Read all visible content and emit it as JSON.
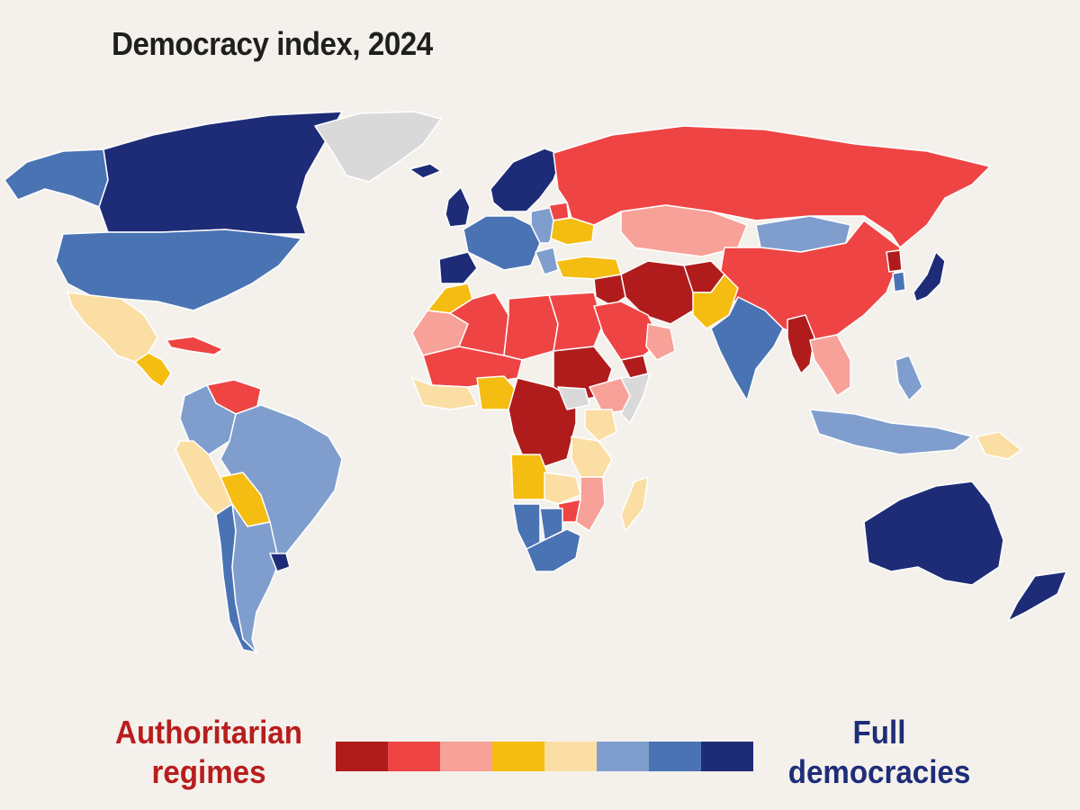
{
  "title": "Democracy index, 2024",
  "legend": {
    "low_label_line1": "Authoritarian",
    "low_label_line2": "regimes",
    "high_label_line1": "Full",
    "high_label_line2": "democracies",
    "scale_colors": [
      "#b01c1c",
      "#ef4444",
      "#f7a199",
      "#f5bd12",
      "#fbdea4",
      "#7f9ece",
      "#4a73b4",
      "#1e2c77"
    ]
  },
  "colors": {
    "background": "#f4f1ec",
    "no_data": "#d9d9d9",
    "title": "#1f1f1f",
    "authoritarian_text": "#b81d1d",
    "democracy_text": "#1e2d78"
  },
  "regions": [
    {
      "name": "alaska",
      "level": 6
    },
    {
      "name": "canada",
      "level": 7
    },
    {
      "name": "greenland",
      "level": -1
    },
    {
      "name": "united-states",
      "level": 6
    },
    {
      "name": "mexico",
      "level": 4
    },
    {
      "name": "central-america",
      "level": 3
    },
    {
      "name": "cuba",
      "level": 1
    },
    {
      "name": "venezuela",
      "level": 1
    },
    {
      "name": "colombia",
      "level": 5
    },
    {
      "name": "peru",
      "level": 4
    },
    {
      "name": "brazil",
      "level": 5
    },
    {
      "name": "bolivia",
      "level": 3
    },
    {
      "name": "argentina",
      "level": 5
    },
    {
      "name": "chile",
      "level": 6
    },
    {
      "name": "uruguay",
      "level": 7
    },
    {
      "name": "iceland",
      "level": 7
    },
    {
      "name": "united-kingdom",
      "level": 7
    },
    {
      "name": "scandinavia",
      "level": 7
    },
    {
      "name": "western-europe",
      "level": 6
    },
    {
      "name": "iberia",
      "level": 7
    },
    {
      "name": "eastern-europe",
      "level": 5
    },
    {
      "name": "ukraine",
      "level": 3
    },
    {
      "name": "belarus",
      "level": 1
    },
    {
      "name": "turkey",
      "level": 3
    },
    {
      "name": "russia",
      "level": 1
    },
    {
      "name": "kazakhstan",
      "level": 2
    },
    {
      "name": "mongolia",
      "level": 5
    },
    {
      "name": "china",
      "level": 1
    },
    {
      "name": "iran",
      "level": 0
    },
    {
      "name": "afghanistan",
      "level": 0
    },
    {
      "name": "pakistan",
      "level": 3
    },
    {
      "name": "india",
      "level": 6
    },
    {
      "name": "myanmar",
      "level": 0
    },
    {
      "name": "southeast-asia",
      "level": 2
    },
    {
      "name": "north-korea",
      "level": 0
    },
    {
      "name": "south-korea",
      "level": 6
    },
    {
      "name": "japan",
      "level": 7
    },
    {
      "name": "indonesia",
      "level": 5
    },
    {
      "name": "philippines",
      "level": 5
    },
    {
      "name": "papua-new-guinea",
      "level": 4
    },
    {
      "name": "australia",
      "level": 7
    },
    {
      "name": "new-zealand",
      "level": 7
    },
    {
      "name": "morocco",
      "level": 3
    },
    {
      "name": "west-sahara",
      "level": 2
    },
    {
      "name": "algeria",
      "level": 1
    },
    {
      "name": "libya",
      "level": 1
    },
    {
      "name": "egypt",
      "level": 1
    },
    {
      "name": "sahel",
      "level": 1
    },
    {
      "name": "sudan",
      "level": 0
    },
    {
      "name": "west-africa",
      "level": 4
    },
    {
      "name": "nigeria",
      "level": 3
    },
    {
      "name": "central-africa",
      "level": 0
    },
    {
      "name": "south-sudan",
      "level": -1
    },
    {
      "name": "ethiopia",
      "level": 2
    },
    {
      "name": "somalia",
      "level": -1
    },
    {
      "name": "kenya",
      "level": 4
    },
    {
      "name": "tanzania",
      "level": 4
    },
    {
      "name": "angola",
      "level": 3
    },
    {
      "name": "zambia",
      "level": 4
    },
    {
      "name": "mozambique",
      "level": 2
    },
    {
      "name": "zimbabwe",
      "level": 1
    },
    {
      "name": "namibia",
      "level": 6
    },
    {
      "name": "botswana",
      "level": 6
    },
    {
      "name": "south-africa",
      "level": 6
    },
    {
      "name": "madagascar",
      "level": 4
    },
    {
      "name": "saudi-arabia",
      "level": 1
    },
    {
      "name": "yemen",
      "level": 0
    },
    {
      "name": "oman",
      "level": 2
    },
    {
      "name": "iraq-syria",
      "level": 0
    }
  ]
}
